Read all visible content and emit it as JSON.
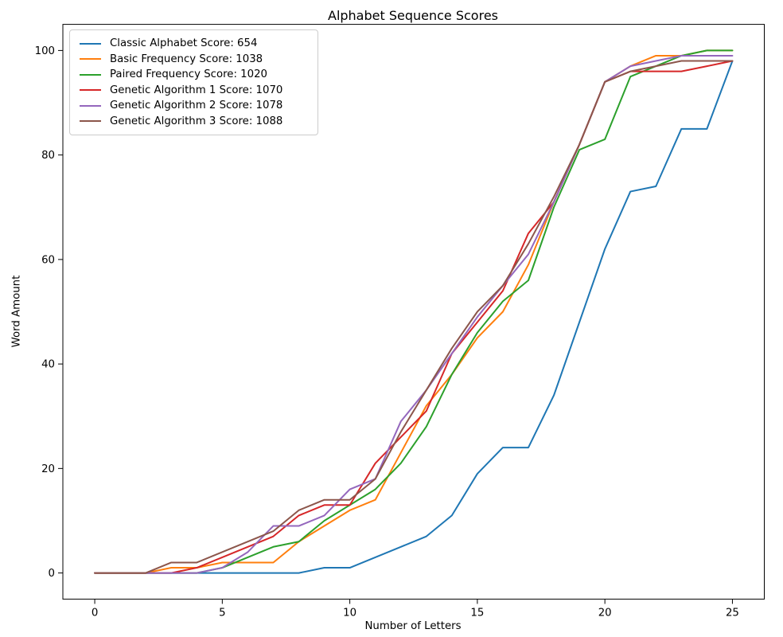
{
  "figure": {
    "title": "Alphabet Sequence Scores",
    "xlabel": "Number of Letters",
    "ylabel": "Word Amount"
  },
  "chart_data": {
    "type": "line",
    "title": "Alphabet Sequence Scores",
    "xlabel": "Number of Letters",
    "ylabel": "Word Amount",
    "grid": false,
    "legend_position": "upper-left",
    "x": [
      0,
      1,
      2,
      3,
      4,
      5,
      6,
      7,
      8,
      9,
      10,
      11,
      12,
      13,
      14,
      15,
      16,
      17,
      18,
      19,
      20,
      21,
      22,
      23,
      24,
      25
    ],
    "xticks": [
      0,
      5,
      10,
      15,
      20,
      25
    ],
    "yticks": [
      0,
      20,
      40,
      60,
      80,
      100
    ],
    "xlim": [
      -1.25,
      26.25
    ],
    "ylim": [
      -5,
      105
    ],
    "series": [
      {
        "name": "Classic Alphabet Score: 654",
        "score": 654,
        "color": "#1f77b4",
        "values": [
          0,
          0,
          0,
          0,
          0,
          0,
          0,
          0,
          0,
          1,
          1,
          3,
          5,
          7,
          11,
          19,
          24,
          24,
          34,
          48,
          62,
          73,
          74,
          85,
          85,
          98
        ]
      },
      {
        "name": "Basic Frequency Score: 1038",
        "score": 1038,
        "color": "#ff7f0e",
        "values": [
          0,
          0,
          0,
          1,
          1,
          2,
          2,
          2,
          6,
          9,
          12,
          14,
          23,
          32,
          38,
          45,
          50,
          59,
          71,
          82,
          94,
          97,
          99,
          99,
          100,
          100
        ]
      },
      {
        "name": "Paired Frequency Score: 1020",
        "score": 1020,
        "color": "#2ca02c",
        "values": [
          0,
          0,
          0,
          0,
          0,
          1,
          3,
          5,
          6,
          10,
          13,
          16,
          21,
          28,
          38,
          46,
          52,
          56,
          70,
          81,
          83,
          95,
          97,
          99,
          100,
          100
        ]
      },
      {
        "name": "Genetic Algorithm 1 Score: 1070",
        "score": 1070,
        "color": "#d62728",
        "values": [
          0,
          0,
          0,
          0,
          1,
          3,
          5,
          7,
          11,
          13,
          13,
          21,
          26,
          31,
          42,
          48,
          54,
          65,
          71,
          82,
          94,
          96,
          96,
          96,
          97,
          98
        ]
      },
      {
        "name": "Genetic Algorithm 2 Score: 1078",
        "score": 1078,
        "color": "#9467bd",
        "values": [
          0,
          0,
          0,
          0,
          0,
          1,
          4,
          9,
          9,
          11,
          16,
          18,
          29,
          35,
          42,
          49,
          55,
          61,
          71,
          82,
          94,
          97,
          98,
          99,
          99,
          99
        ]
      },
      {
        "name": "Genetic Algorithm 3 Score: 1088",
        "score": 1088,
        "color": "#8c564b",
        "values": [
          0,
          0,
          0,
          2,
          2,
          4,
          6,
          8,
          12,
          14,
          14,
          18,
          27,
          35,
          43,
          50,
          55,
          63,
          72,
          82,
          94,
          96,
          97,
          98,
          98,
          98
        ]
      }
    ]
  }
}
